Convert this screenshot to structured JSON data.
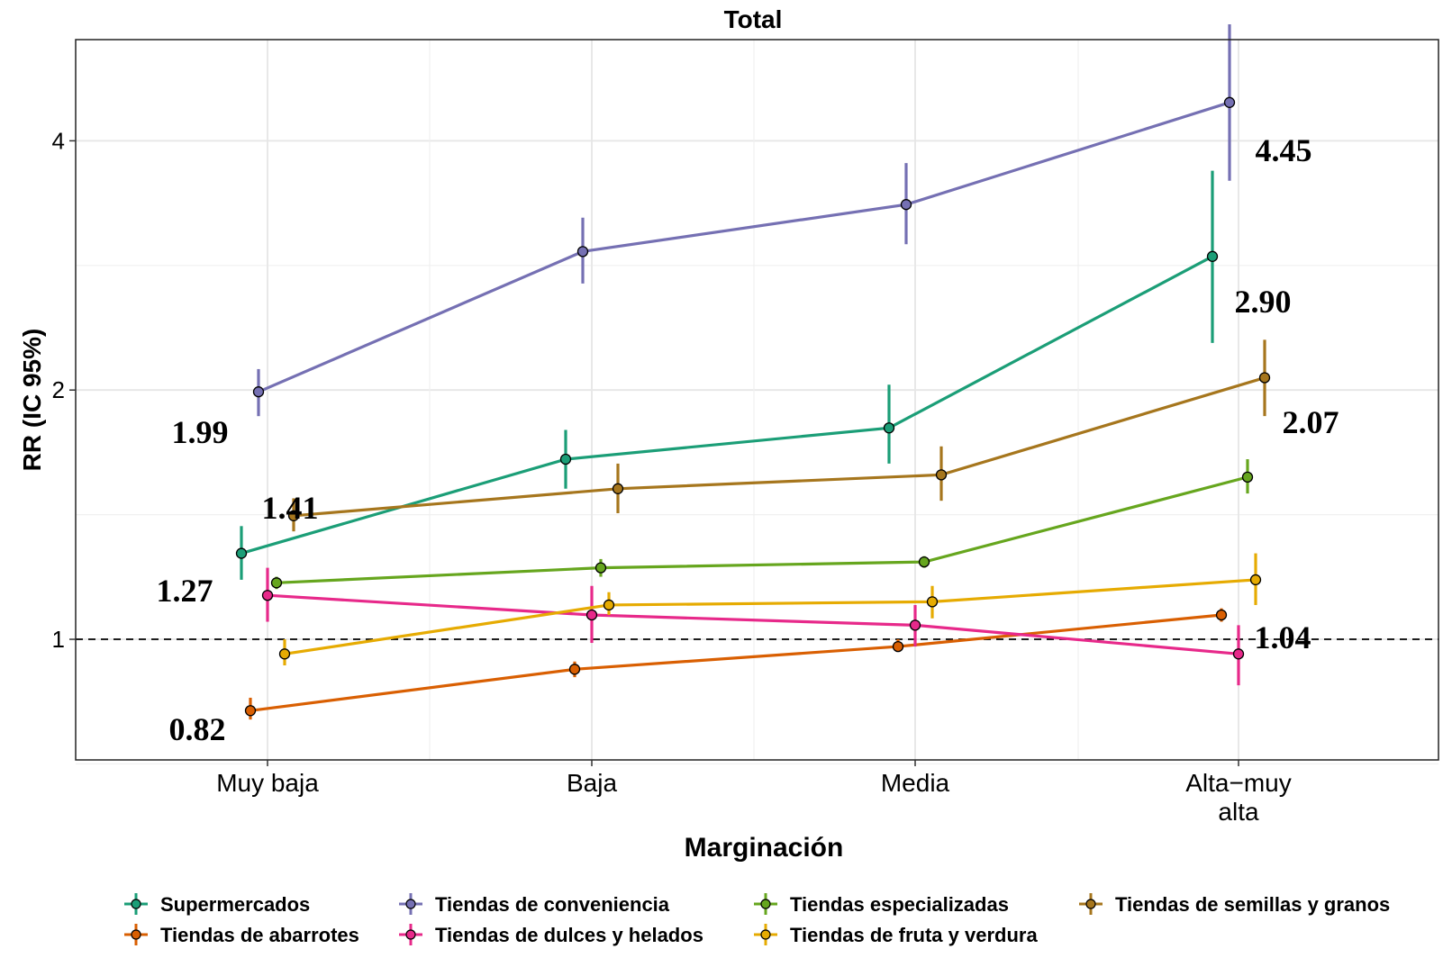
{
  "chart_data": {
    "type": "line",
    "title": "Total",
    "xlabel": "Marginación",
    "ylabel": "RR (IC 95%)",
    "y_scale": "log2",
    "ylim": [
      0.715,
      5.3
    ],
    "yticks": [
      1,
      2,
      4
    ],
    "reference_line": 1,
    "categories": [
      [
        "Muy baja"
      ],
      [
        "Baja"
      ],
      [
        "Media"
      ],
      [
        "Alta−muy",
        "alta"
      ]
    ],
    "grid": true,
    "legend_position": "bottom",
    "series": [
      {
        "name": "Supermercados",
        "color": "#1B9E77",
        "values": [
          1.27,
          1.65,
          1.8,
          2.9
        ],
        "lower": [
          1.18,
          1.52,
          1.63,
          2.28
        ],
        "upper": [
          1.37,
          1.79,
          2.03,
          3.68
        ]
      },
      {
        "name": "Tiendas de abarrotes",
        "color": "#D95F02",
        "values": [
          0.82,
          0.92,
          0.98,
          1.07
        ],
        "lower": [
          0.8,
          0.9,
          0.97,
          1.05
        ],
        "upper": [
          0.85,
          0.94,
          1.0,
          1.09
        ]
      },
      {
        "name": "Tiendas de conveniencia",
        "color": "#7570B3",
        "values": [
          1.99,
          2.94,
          3.35,
          4.45
        ],
        "lower": [
          1.86,
          2.69,
          3.0,
          3.58
        ],
        "upper": [
          2.12,
          3.23,
          3.76,
          5.53
        ]
      },
      {
        "name": "Tiendas de dulces y helados",
        "color": "#E7298A",
        "values": [
          1.13,
          1.07,
          1.04,
          0.96
        ],
        "lower": [
          1.05,
          0.99,
          0.98,
          0.88
        ],
        "upper": [
          1.22,
          1.16,
          1.1,
          1.04
        ]
      },
      {
        "name": "Tiendas especializadas",
        "color": "#66A61E",
        "values": [
          1.17,
          1.22,
          1.24,
          1.57
        ],
        "lower": [
          1.15,
          1.19,
          1.22,
          1.5
        ],
        "upper": [
          1.19,
          1.25,
          1.26,
          1.65
        ]
      },
      {
        "name": "Tiendas de fruta y verdura",
        "color": "#E6AB02",
        "values": [
          0.96,
          1.1,
          1.11,
          1.18
        ],
        "lower": [
          0.93,
          1.07,
          1.06,
          1.1
        ],
        "upper": [
          1.0,
          1.14,
          1.16,
          1.27
        ]
      },
      {
        "name": "Tiendas de semillas y granos",
        "color": "#A6761D",
        "values": [
          1.41,
          1.52,
          1.58,
          2.07
        ],
        "lower": [
          1.35,
          1.42,
          1.47,
          1.86
        ],
        "upper": [
          1.48,
          1.63,
          1.71,
          2.3
        ]
      }
    ],
    "annotations": [
      {
        "text": "1.99"
      },
      {
        "text": "1.41"
      },
      {
        "text": "1.27"
      },
      {
        "text": "0.82"
      },
      {
        "text": "4.45"
      },
      {
        "text": "2.90"
      },
      {
        "text": "2.07"
      },
      {
        "text": "1.04"
      }
    ],
    "legend": [
      "Supermercados",
      "Tiendas de conveniencia",
      "Tiendas especializadas",
      "Tiendas de semillas y granos",
      "Tiendas de abarrotes",
      "Tiendas de dulces y helados",
      "Tiendas de fruta y verdura"
    ]
  }
}
